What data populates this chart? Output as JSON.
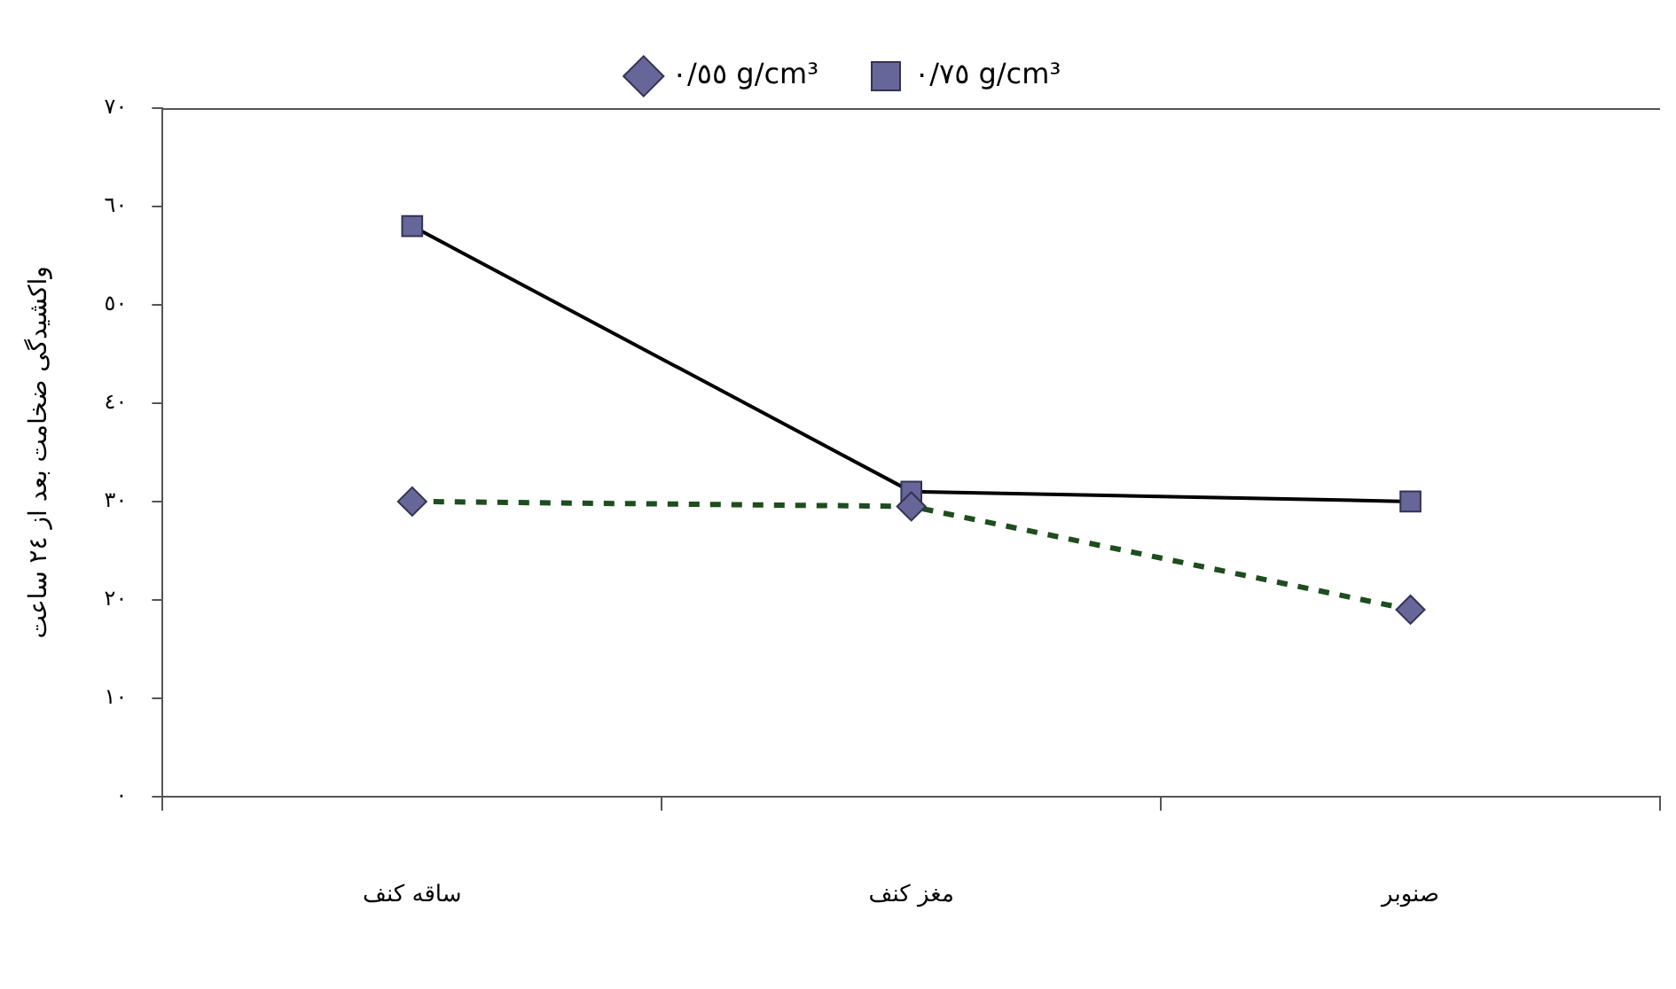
{
  "chart_data": {
    "type": "line",
    "ylabel": "واکشیدگی ضخامت بعد از ٢٤ ساعت",
    "categories": [
      "ساقه کنف",
      "مغز کنف",
      "صنوبر"
    ],
    "series": [
      {
        "name": "٠/٥٥ g/cm³",
        "color": "#1e4d1e",
        "values": [
          30,
          29.5,
          19
        ],
        "marker": "diamond",
        "line_style": "dashed"
      },
      {
        "name": "٠/٧٥ g/cm³",
        "color": "#000000",
        "values": [
          58,
          31,
          30
        ],
        "marker": "square",
        "line_style": "solid"
      }
    ],
    "ylim": [
      0,
      70
    ],
    "yticks": [
      {
        "value": 0,
        "label": "٠"
      },
      {
        "value": 10,
        "label": "١٠"
      },
      {
        "value": 20,
        "label": "٢٠"
      },
      {
        "value": 30,
        "label": "٣٠"
      },
      {
        "value": 40,
        "label": "٤٠"
      },
      {
        "value": 50,
        "label": "٥٠"
      },
      {
        "value": 60,
        "label": "٦٠"
      },
      {
        "value": 70,
        "label": "٧٠"
      }
    ],
    "grid": false,
    "legend": "top"
  }
}
